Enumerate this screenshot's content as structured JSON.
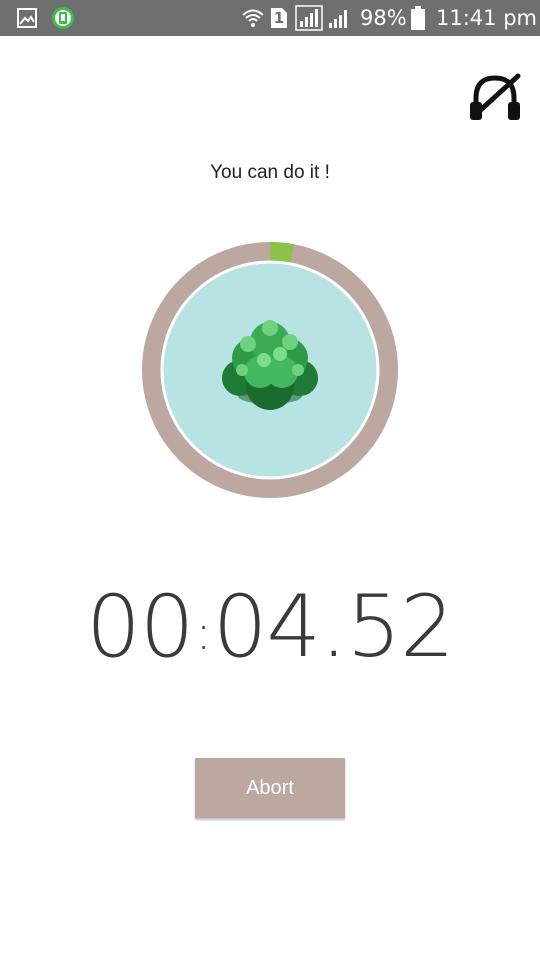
{
  "status_bar": {
    "battery_text": "98%",
    "time": "11:41 pm",
    "sim_slot": "1",
    "icons": [
      "gallery-icon",
      "app-notification-icon",
      "wifi-icon",
      "sim-icon",
      "signal-icon",
      "signal-icon-2",
      "battery-icon"
    ]
  },
  "header": {
    "music_toggle_icon": "music-off-icon"
  },
  "main": {
    "motivation_text": "You can do it !",
    "progress": 0.03,
    "ring_color": "#bca8a1",
    "progress_color": "#8bc34a",
    "inner_color": "#b7e3e3",
    "plant_icon": "tree-icon"
  },
  "timer": {
    "hours": "00",
    "minutes": "04",
    "seconds": "52"
  },
  "actions": {
    "abort_label": "Abort",
    "abort_color": "#bca8a1"
  }
}
